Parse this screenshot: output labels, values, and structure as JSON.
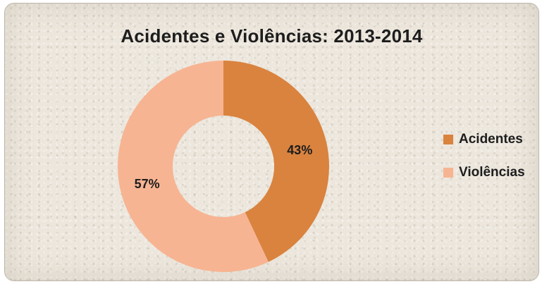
{
  "chart_data": {
    "type": "donut",
    "title": "Acidentes e Violências: 2013-2014",
    "categories": [
      "Acidentes",
      "Violências"
    ],
    "values": [
      43,
      57
    ],
    "value_labels": [
      "43%",
      "57%"
    ],
    "colors": [
      "#d9833f",
      "#f7b492"
    ],
    "legend_position": "right"
  }
}
